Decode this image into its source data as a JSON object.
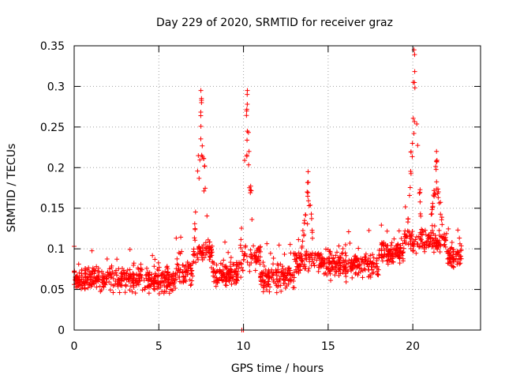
{
  "chart_data": {
    "type": "scatter",
    "title": "Day 229 of 2020, SRMTID for receiver graz",
    "xlabel": "GPS time / hours",
    "ylabel": "SRMTID / TECUs",
    "xlim": [
      0,
      24
    ],
    "ylim": [
      0,
      0.35
    ],
    "x_ticks": [
      0,
      5,
      10,
      15,
      20
    ],
    "x_tick_labels": [
      "0",
      "5",
      "10",
      "15",
      "20"
    ],
    "y_ticks": [
      0,
      0.05,
      0.1,
      0.15,
      0.2,
      0.25,
      0.3,
      0.35
    ],
    "y_tick_labels": [
      "0",
      "0.05",
      "0.1",
      "0.15",
      "0.2",
      "0.25",
      "0.3",
      "0.35"
    ],
    "grid": true,
    "marker": "+",
    "color": "#ff0000",
    "data_extent_x": [
      0,
      22.9
    ],
    "baseline_range": [
      0.03,
      0.12
    ],
    "peaks": [
      {
        "x": 7.5,
        "y": 0.295
      },
      {
        "x": 10.2,
        "y": 0.295
      },
      {
        "x": 13.8,
        "y": 0.195
      },
      {
        "x": 20.1,
        "y": 0.345
      },
      {
        "x": 21.4,
        "y": 0.22
      }
    ],
    "zero_points_x": [
      9.9,
      10.0
    ]
  }
}
